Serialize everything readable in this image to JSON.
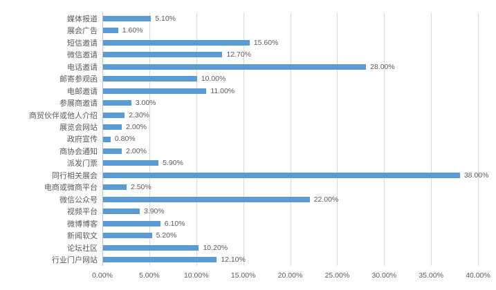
{
  "chart_data": {
    "type": "bar",
    "orientation": "horizontal",
    "title": "",
    "xlabel": "",
    "ylabel": "",
    "legend": "none",
    "grid": "vertical",
    "xlim": [
      0,
      40
    ],
    "x_ticks": [
      "0.00%",
      "5.00%",
      "10.00%",
      "15.00%",
      "20.00%",
      "25.00%",
      "30.00%",
      "35.00%",
      "40.00%"
    ],
    "categories": [
      "媒体报道",
      "展会广告",
      "短信邀请",
      "微信邀请",
      "电话邀请",
      "邮寄参观函",
      "电邮邀请",
      "参展商邀请",
      "商贸伙伴或他人介绍",
      "展览会网站",
      "政府宣传",
      "商协会通知",
      "派发门票",
      "同行相关展会",
      "电商或微商平台",
      "微信公众号",
      "视频平台",
      "微博博客",
      "新闻软文",
      "论坛社区",
      "行业门户网站"
    ],
    "values": [
      5.1,
      1.6,
      15.6,
      12.7,
      28.0,
      10.0,
      11.0,
      3.0,
      2.3,
      2.0,
      0.8,
      2.0,
      5.9,
      38.0,
      2.5,
      22.0,
      3.9,
      6.1,
      5.2,
      10.2,
      12.1
    ],
    "value_labels": [
      "5.10%",
      "1.60%",
      "15.60%",
      "12.70%",
      "28.00%",
      "10.00%",
      "11.00%",
      "3.00%",
      "2.30%",
      "2.00%",
      "0.80%",
      "2.00%",
      "5.90%",
      "38.00%",
      "2.50%",
      "22.00%",
      "3.90%",
      "6.10%",
      "5.20%",
      "10.20%",
      "12.10%"
    ],
    "colors": {
      "bar": "#5B9BD5",
      "gridline": "#D9D9D9",
      "axis_line": "#BFBFBF",
      "text": "#595959",
      "background": "#FFFFFF"
    }
  }
}
